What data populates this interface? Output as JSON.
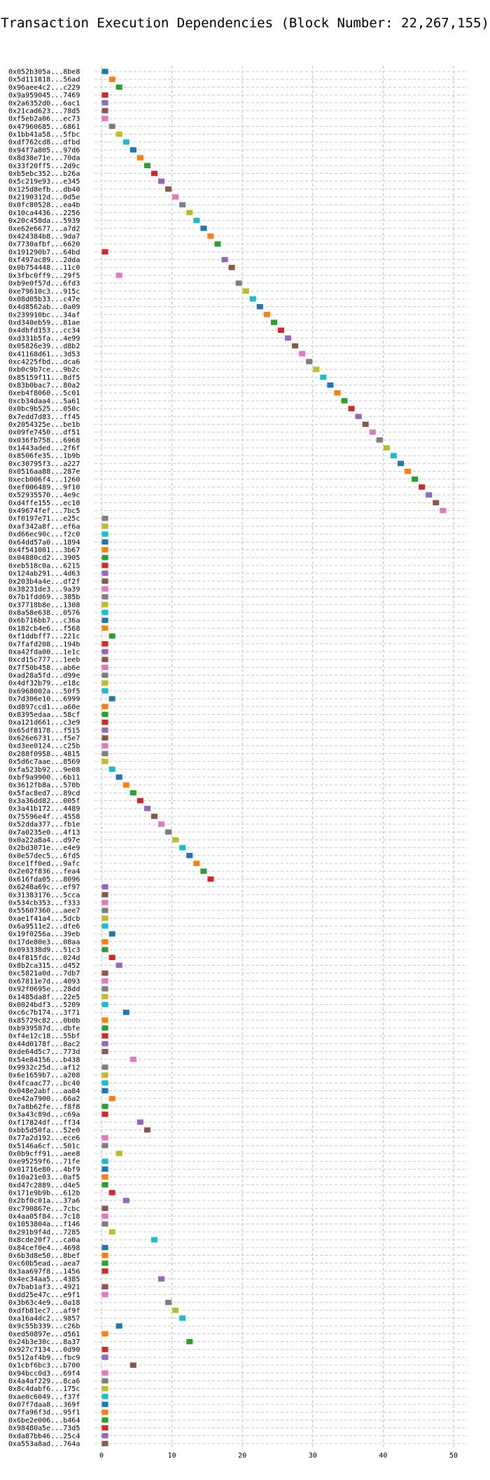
{
  "chart_data": {
    "type": "gantt",
    "title": "Transaction Execution Dependencies (Block Number: 22,267,155)",
    "xlabel": "",
    "ylabel": "",
    "xlim": [
      -1,
      52
    ],
    "xticks": [
      0,
      10,
      20,
      30,
      40,
      50
    ],
    "grid": true,
    "palette": [
      "#1f77b4",
      "#ff7f0e",
      "#2ca02c",
      "#d62728",
      "#9467bd",
      "#8c564b",
      "#e377c2",
      "#7f7f7f",
      "#bcbd22",
      "#17becf"
    ],
    "transactions": [
      {
        "label": "0x052b305a...8be8",
        "start": 0
      },
      {
        "label": "0x5d111818...56ad",
        "start": 1
      },
      {
        "label": "0x96aee4c2...c229",
        "start": 2
      },
      {
        "label": "0x9a959045...7469",
        "start": 0
      },
      {
        "label": "0x2a6352d0...6ac1",
        "start": 0
      },
      {
        "label": "0x21cad623...78d5",
        "start": 0
      },
      {
        "label": "0xf5eb2a06...ec73",
        "start": 0
      },
      {
        "label": "0x47960685...6861",
        "start": 1
      },
      {
        "label": "0x1bb41a58...5fbc",
        "start": 2
      },
      {
        "label": "0xdf762cd8...dfbd",
        "start": 3
      },
      {
        "label": "0x94f7a805...97d6",
        "start": 4
      },
      {
        "label": "0x8d38e71e...70da",
        "start": 5
      },
      {
        "label": "0x33f20ff5...2d9c",
        "start": 6
      },
      {
        "label": "0xb5ebc352...b26a",
        "start": 7
      },
      {
        "label": "0x5c219e93...e345",
        "start": 8
      },
      {
        "label": "0x125d8efb...db40",
        "start": 9
      },
      {
        "label": "0x2190312d...0d5e",
        "start": 10
      },
      {
        "label": "0x0fc80528...ea4b",
        "start": 11
      },
      {
        "label": "0x10ca4436...2256",
        "start": 12
      },
      {
        "label": "0x20c458da...5939",
        "start": 13
      },
      {
        "label": "0xe62e6677...a7d2",
        "start": 14
      },
      {
        "label": "0x424384b8...9da7",
        "start": 15
      },
      {
        "label": "0x7730afbf...6620",
        "start": 16
      },
      {
        "label": "0x191290b7...64bd",
        "start": 0
      },
      {
        "label": "0xf497ac89...2dda",
        "start": 17
      },
      {
        "label": "0x0b754448...11c0",
        "start": 18
      },
      {
        "label": "0x3fbc0ff9...29f5",
        "start": 2
      },
      {
        "label": "0xb9e0f57d...6fd3",
        "start": 19
      },
      {
        "label": "0xe79610c3...915c",
        "start": 20
      },
      {
        "label": "0x08d05b33...c47e",
        "start": 21
      },
      {
        "label": "0x4d8562ab...0a09",
        "start": 22
      },
      {
        "label": "0x239910bc...34af",
        "start": 23
      },
      {
        "label": "0xd340eb59...81ae",
        "start": 24
      },
      {
        "label": "0x4dbfd153...cc34",
        "start": 25
      },
      {
        "label": "0xd331b5fa...4e99",
        "start": 26
      },
      {
        "label": "0x05826e39...d8b2",
        "start": 27
      },
      {
        "label": "0x41168d61...3d53",
        "start": 28
      },
      {
        "label": "0xc4225fbd...dca6",
        "start": 29
      },
      {
        "label": "0xb0c9b7ce...9b2c",
        "start": 30
      },
      {
        "label": "0x85159f11...8df5",
        "start": 31
      },
      {
        "label": "0x83b0bac7...80a2",
        "start": 32
      },
      {
        "label": "0xeb4f8060...5c01",
        "start": 33
      },
      {
        "label": "0xcb34daa4...5a61",
        "start": 34
      },
      {
        "label": "0x0bc9b525...050c",
        "start": 35
      },
      {
        "label": "0x7edd7d83...ff45",
        "start": 36
      },
      {
        "label": "0x2054325e...be1b",
        "start": 37
      },
      {
        "label": "0x09fe7450...df51",
        "start": 38
      },
      {
        "label": "0x036fb758...6968",
        "start": 39
      },
      {
        "label": "0x1443aded...2f6f",
        "start": 40
      },
      {
        "label": "0x8506fe35...1b9b",
        "start": 41
      },
      {
        "label": "0xc30795f3...a227",
        "start": 42
      },
      {
        "label": "0x0516aa88...287e",
        "start": 43
      },
      {
        "label": "0xecb006f4...1260",
        "start": 44
      },
      {
        "label": "0xef006489...9f10",
        "start": 45
      },
      {
        "label": "0x52935570...4e9c",
        "start": 46
      },
      {
        "label": "0xd4ffe155...ec10",
        "start": 47
      },
      {
        "label": "0x49674fef...7bc5",
        "start": 48
      },
      {
        "label": "0xf0197e71...e25c",
        "start": 0
      },
      {
        "label": "0xaf342a8f...ef6a",
        "start": 0
      },
      {
        "label": "0xd66ec90c...f2c0",
        "start": 0
      },
      {
        "label": "0x64dd57a0...1894",
        "start": 0
      },
      {
        "label": "0x4f541001...3b67",
        "start": 0
      },
      {
        "label": "0x04880cd2...3905",
        "start": 0
      },
      {
        "label": "0xeb518c0a...6215",
        "start": 0
      },
      {
        "label": "0x124ab291...4d63",
        "start": 0
      },
      {
        "label": "0x203b4a4e...df2f",
        "start": 0
      },
      {
        "label": "0x38231de3...9a39",
        "start": 0
      },
      {
        "label": "0x7b1fdd69...385b",
        "start": 0
      },
      {
        "label": "0x37718b8e...1308",
        "start": 0
      },
      {
        "label": "0x8a58e638...0576",
        "start": 0
      },
      {
        "label": "0x6b716bb7...c36a",
        "start": 0
      },
      {
        "label": "0x182cb4e6...f568",
        "start": 0
      },
      {
        "label": "0xf1ddbff7...221c",
        "start": 1
      },
      {
        "label": "0x7fafd208...194b",
        "start": 0
      },
      {
        "label": "0xa42fda00...1e1c",
        "start": 0
      },
      {
        "label": "0xcd15c777...1eeb",
        "start": 0
      },
      {
        "label": "0x7f50b458...ab6e",
        "start": 0
      },
      {
        "label": "0xad28a5fd...d99e",
        "start": 0
      },
      {
        "label": "0x4df32b79...e18c",
        "start": 0
      },
      {
        "label": "0x6968002a...50f5",
        "start": 0
      },
      {
        "label": "0x7d306e10...6999",
        "start": 1
      },
      {
        "label": "0xd897ccd1...a60e",
        "start": 0
      },
      {
        "label": "0x8395edaa...58cf",
        "start": 0
      },
      {
        "label": "0xa121d661...c3e9",
        "start": 0
      },
      {
        "label": "0x65df8178...f515",
        "start": 0
      },
      {
        "label": "0x626e6731...f5e7",
        "start": 0
      },
      {
        "label": "0xd3ee0124...c25b",
        "start": 0
      },
      {
        "label": "0x288f0958...4815",
        "start": 0
      },
      {
        "label": "0x5d6c7aae...8569",
        "start": 0
      },
      {
        "label": "0xfa523b92...9e08",
        "start": 1
      },
      {
        "label": "0xbf9a9900...6b11",
        "start": 2
      },
      {
        "label": "0x3612fb8a...570b",
        "start": 3
      },
      {
        "label": "0x5fac8ed7...89cd",
        "start": 4
      },
      {
        "label": "0x3a36dd82...005f",
        "start": 5
      },
      {
        "label": "0x3a41b172...4489",
        "start": 6
      },
      {
        "label": "0x75596e4f...4558",
        "start": 7
      },
      {
        "label": "0x52dda377...fb1e",
        "start": 8
      },
      {
        "label": "0x7a0235e0...4f13",
        "start": 9
      },
      {
        "label": "0x0a22a8a4...d97e",
        "start": 10
      },
      {
        "label": "0x2bd3071e...e4e9",
        "start": 11
      },
      {
        "label": "0x0e57dec5...6fd5",
        "start": 12
      },
      {
        "label": "0xce1ff0ed...9afc",
        "start": 13
      },
      {
        "label": "0x2e02f836...fea4",
        "start": 14
      },
      {
        "label": "0x616fda05...8096",
        "start": 15
      },
      {
        "label": "0x6248a69c...ef97",
        "start": 0
      },
      {
        "label": "0x31383176...5cca",
        "start": 0
      },
      {
        "label": "0x534cb353...f333",
        "start": 0
      },
      {
        "label": "0x55607360...aee7",
        "start": 0
      },
      {
        "label": "0xae1f41a4...5dcb",
        "start": 0
      },
      {
        "label": "0x6a9511e2...dfe6",
        "start": 0
      },
      {
        "label": "0x19f0256a...39eb",
        "start": 1
      },
      {
        "label": "0x17de80e3...08aa",
        "start": 0
      },
      {
        "label": "0x093338d9...51c3",
        "start": 0
      },
      {
        "label": "0x4f815fdc...024d",
        "start": 1
      },
      {
        "label": "0x8b2ca315...d452",
        "start": 2
      },
      {
        "label": "0xc5821a0d...7db7",
        "start": 0
      },
      {
        "label": "0x67811e7d...4093",
        "start": 0
      },
      {
        "label": "0x92f0695e...28dd",
        "start": 0
      },
      {
        "label": "0x1485da8f...22e5",
        "start": 0
      },
      {
        "label": "0x0024bdf3...5209",
        "start": 0
      },
      {
        "label": "0xc6c7b174...3f71",
        "start": 3
      },
      {
        "label": "0x85729c82...0b0b",
        "start": 0
      },
      {
        "label": "0xb939587d...dbfe",
        "start": 0
      },
      {
        "label": "0xf4e12c18...55bf",
        "start": 0
      },
      {
        "label": "0x44d0178f...8ac2",
        "start": 0
      },
      {
        "label": "0xde64d5c7...773d",
        "start": 0
      },
      {
        "label": "0x54e84156...b438",
        "start": 4
      },
      {
        "label": "0x9932c25d...af12",
        "start": 0
      },
      {
        "label": "0x6e1659b7...a208",
        "start": 0
      },
      {
        "label": "0x4fcaac77...bc40",
        "start": 0
      },
      {
        "label": "0x048e2abf...aa84",
        "start": 0
      },
      {
        "label": "0xe42a7900...66a2",
        "start": 1
      },
      {
        "label": "0x7a8b62fe...f8f8",
        "start": 0
      },
      {
        "label": "0x3a43c89d...c69a",
        "start": 0
      },
      {
        "label": "0xf17824df...ff34",
        "start": 5
      },
      {
        "label": "0xbb5d50fa...52e0",
        "start": 6
      },
      {
        "label": "0x77a2d192...ece6",
        "start": 0
      },
      {
        "label": "0x5146a6cf...501c",
        "start": 0
      },
      {
        "label": "0x0b9cff91...aee8",
        "start": 2
      },
      {
        "label": "0xe95259f6...71fe",
        "start": 0
      },
      {
        "label": "0x01716e80...4bf9",
        "start": 0
      },
      {
        "label": "0x10a21e03...0af5",
        "start": 0
      },
      {
        "label": "0xd47c2889...d4e5",
        "start": 0
      },
      {
        "label": "0x171e9b9b...612b",
        "start": 1
      },
      {
        "label": "0x2bf0c01a...37a6",
        "start": 3
      },
      {
        "label": "0xc790867e...7cbc",
        "start": 0
      },
      {
        "label": "0x4aa05f84...7c18",
        "start": 0
      },
      {
        "label": "0x1053804a...f146",
        "start": 0
      },
      {
        "label": "0x291b9f4d...7285",
        "start": 1
      },
      {
        "label": "0x8cde20f7...ca0a",
        "start": 7
      },
      {
        "label": "0x84cef0e4...4698",
        "start": 0
      },
      {
        "label": "0x6b3d8e50...8bef",
        "start": 0
      },
      {
        "label": "0xc60b5ead...aea7",
        "start": 0
      },
      {
        "label": "0x3aa697f8...1456",
        "start": 0
      },
      {
        "label": "0x4ec34aa5...4385",
        "start": 8
      },
      {
        "label": "0x7bab1af3...4921",
        "start": 0
      },
      {
        "label": "0xdd25e47c...e9f1",
        "start": 0
      },
      {
        "label": "0x3b63c4e9...0a18",
        "start": 9
      },
      {
        "label": "0xdfb81ec7...af9f",
        "start": 10
      },
      {
        "label": "0xa16a4dc2...9857",
        "start": 11
      },
      {
        "label": "0x9c55b339...c26b",
        "start": 2
      },
      {
        "label": "0xed50897e...d561",
        "start": 0
      },
      {
        "label": "0x24b3e30c...8a37",
        "start": 12
      },
      {
        "label": "0x927c7134...0d90",
        "start": 0
      },
      {
        "label": "0x512af4b9...fbc9",
        "start": 0
      },
      {
        "label": "0x1cbf6bc3...b700",
        "start": 4
      },
      {
        "label": "0x94bcc0d3...69f4",
        "start": 0
      },
      {
        "label": "0x4a4af229...8ca6",
        "start": 0
      },
      {
        "label": "0x8c4dabf6...175c",
        "start": 0
      },
      {
        "label": "0xae0c6049...f37f",
        "start": 0
      },
      {
        "label": "0x07f7daa8...369f",
        "start": 0
      },
      {
        "label": "0x7fa96f3d...95f1",
        "start": 0
      },
      {
        "label": "0x6be2e006...b464",
        "start": 0
      },
      {
        "label": "0x98480a5e...73d5",
        "start": 0
      },
      {
        "label": "0xda87bb46...25c4",
        "start": 0
      },
      {
        "label": "0xa553a8ad...764a",
        "start": 0
      }
    ]
  }
}
